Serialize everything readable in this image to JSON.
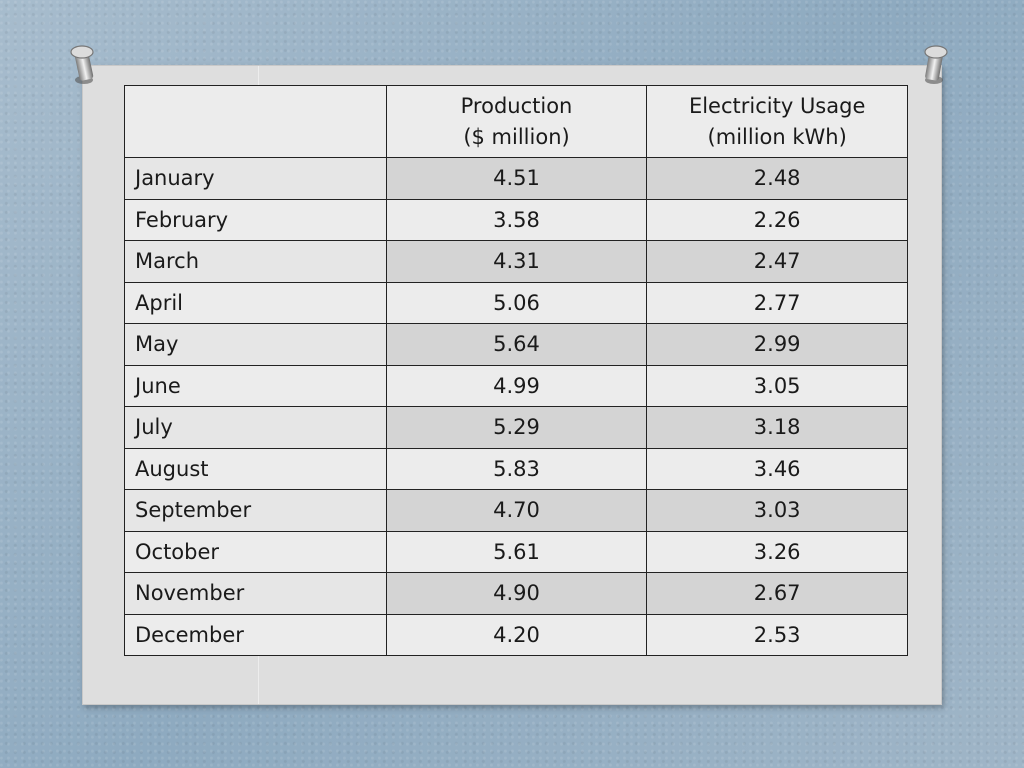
{
  "table": {
    "columns": {
      "label": "",
      "production_line1": "Production",
      "production_line2": "($ million)",
      "electricity_line1": "Electricity Usage",
      "electricity_line2": "(million kWh)"
    },
    "rows": [
      {
        "month": "January",
        "production": "4.51",
        "electricity": "2.48"
      },
      {
        "month": "February",
        "production": "3.58",
        "electricity": "2.26"
      },
      {
        "month": "March",
        "production": "4.31",
        "electricity": "2.47"
      },
      {
        "month": "April",
        "production": "5.06",
        "electricity": "2.77"
      },
      {
        "month": "May",
        "production": "5.64",
        "electricity": "2.99"
      },
      {
        "month": "June",
        "production": "4.99",
        "electricity": "3.05"
      },
      {
        "month": "July",
        "production": "5.29",
        "electricity": "3.18"
      },
      {
        "month": "August",
        "production": "5.83",
        "electricity": "3.46"
      },
      {
        "month": "September",
        "production": "4.70",
        "electricity": "3.03"
      },
      {
        "month": "October",
        "production": "5.61",
        "electricity": "3.26"
      },
      {
        "month": "November",
        "production": "4.90",
        "electricity": "2.67"
      },
      {
        "month": "December",
        "production": "4.20",
        "electricity": "2.53"
      }
    ]
  },
  "decor": {
    "pin_icon": "pushpin-icon",
    "background_color": "#9fb6c8",
    "card_color": "#dedede",
    "stripe_dark": "#d4d4d4",
    "stripe_light": "#ececec"
  }
}
